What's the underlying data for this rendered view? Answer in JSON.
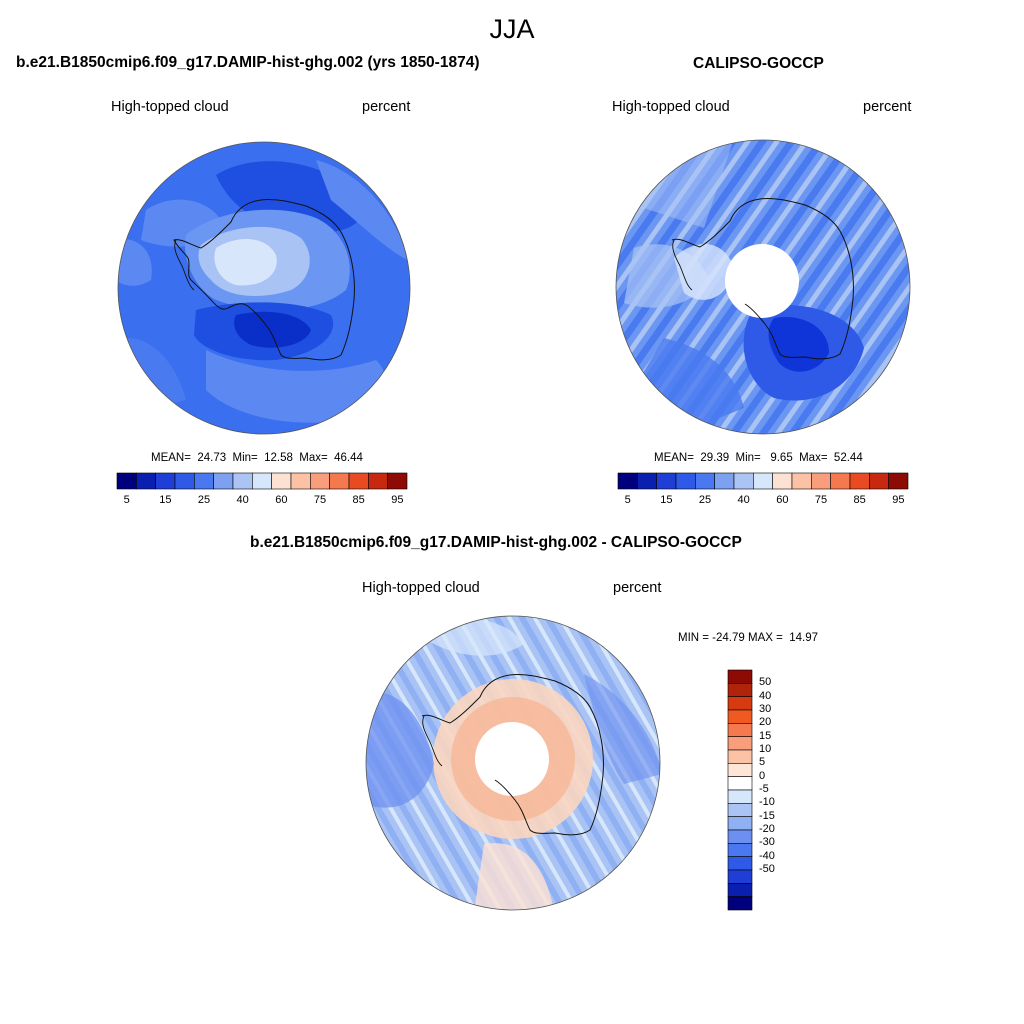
{
  "page_title": "JJA",
  "panels": [
    {
      "title": "b.e21.B1850cmip6.f09_g17.DAMIP-hist-ghg.002 (yrs 1850-1874)",
      "left_label": "High-topped cloud",
      "right_label": "percent",
      "stats": "MEAN=  24.73  Min=  12.58  Max=  46.44"
    },
    {
      "title": "CALIPSO-GOCCP",
      "left_label": "High-topped cloud",
      "right_label": "percent",
      "stats": "MEAN=  29.39  Min=   9.65  Max=  52.44"
    },
    {
      "title": "b.e21.B1850cmip6.f09_g17.DAMIP-hist-ghg.002 - CALIPSO-GOCCP",
      "left_label": "High-topped cloud",
      "right_label": "percent",
      "stats": "MIN = -24.79 MAX =  14.97"
    }
  ],
  "abs_colorbar": {
    "colors": [
      "#00007f",
      "#0a1fb0",
      "#1f3ed6",
      "#2f5ae8",
      "#4a78f0",
      "#7ea0f0",
      "#abc4f4",
      "#d6e6fb",
      "#fde1d3",
      "#fbc2a6",
      "#f89e7c",
      "#f4794f",
      "#e84a21",
      "#c62810",
      "#8d0a05"
    ],
    "tick_labels": [
      "5",
      "15",
      "25",
      "40",
      "60",
      "75",
      "85",
      "95"
    ]
  },
  "diff_colorbar": {
    "colors": [
      "#8d0a05",
      "#b0240c",
      "#d63a10",
      "#f05a22",
      "#f4794f",
      "#f89e7c",
      "#fbc2a6",
      "#fde6d8",
      "#ffffff",
      "#d6e6fb",
      "#abc4f4",
      "#8fb0f2",
      "#6d90f0",
      "#4a78f0",
      "#2f5ae8",
      "#1f3ed6",
      "#0a1fb0",
      "#00007f"
    ],
    "tick_labels": [
      "50",
      "40",
      "30",
      "20",
      "15",
      "10",
      "5",
      "0",
      "-5",
      "-10",
      "-15",
      "-20",
      "-30",
      "-40",
      "-50"
    ]
  },
  "colors": {
    "map_blue_dark": "#0f35d8",
    "map_blue_mid": "#3a6ff0",
    "map_blue_light": "#6b97f2",
    "map_blue_pale": "#a9c3f5",
    "map_very_pale": "#d8e6fc",
    "map_orange_pale": "#fbd6c0",
    "coast": "#111111"
  }
}
